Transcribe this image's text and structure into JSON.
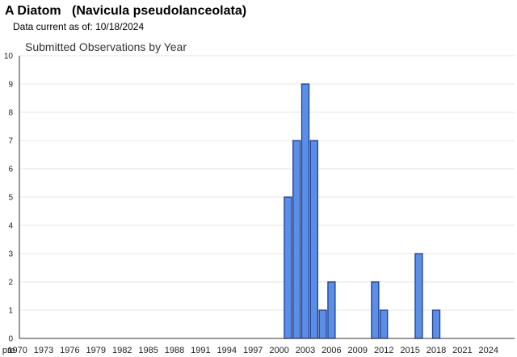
{
  "header": {
    "species_common": "A Diatom",
    "species_scientific": "(Navicula pseudolanceolata)",
    "data_current_label": "Data current as of:",
    "data_current_date": "10/18/2024"
  },
  "colors": {
    "bar_fill": "#5b8ee6",
    "bar_stroke": "#1f3f8f",
    "grid": "#e6e6e6",
    "axis": "#333333"
  },
  "chart_data": {
    "type": "bar",
    "title": "Submitted Observations by Year",
    "xlabel": "",
    "ylabel": "",
    "ylim": [
      0,
      10
    ],
    "yticks": [
      0,
      1,
      2,
      3,
      4,
      5,
      6,
      7,
      8,
      9,
      10
    ],
    "x_tick_labels": [
      "pre",
      "1970",
      "1973",
      "1976",
      "1979",
      "1982",
      "1985",
      "1988",
      "1991",
      "1994",
      "1997",
      "2000",
      "2003",
      "2006",
      "2009",
      "2012",
      "2015",
      "2018",
      "2021",
      "2024"
    ],
    "categories": [
      "pre",
      "1970",
      "1971",
      "1972",
      "1973",
      "1974",
      "1975",
      "1976",
      "1977",
      "1978",
      "1979",
      "1980",
      "1981",
      "1982",
      "1983",
      "1984",
      "1985",
      "1986",
      "1987",
      "1988",
      "1989",
      "1990",
      "1991",
      "1992",
      "1993",
      "1994",
      "1995",
      "1996",
      "1997",
      "1998",
      "1999",
      "2000",
      "2001",
      "2002",
      "2003",
      "2004",
      "2005",
      "2006",
      "2007",
      "2008",
      "2009",
      "2010",
      "2011",
      "2012",
      "2013",
      "2014",
      "2015",
      "2016",
      "2017",
      "2018",
      "2019",
      "2020",
      "2021",
      "2022",
      "2023",
      "2024"
    ],
    "values": [
      0,
      0,
      0,
      0,
      0,
      0,
      0,
      0,
      0,
      0,
      0,
      0,
      0,
      0,
      0,
      0,
      0,
      0,
      0,
      0,
      0,
      0,
      0,
      0,
      0,
      0,
      0,
      0,
      0,
      0,
      0,
      0,
      5,
      7,
      9,
      7,
      1,
      2,
      0,
      0,
      0,
      0,
      2,
      1,
      0,
      0,
      0,
      3,
      0,
      1,
      0,
      0,
      0,
      0,
      0,
      0
    ],
    "grid": true
  }
}
